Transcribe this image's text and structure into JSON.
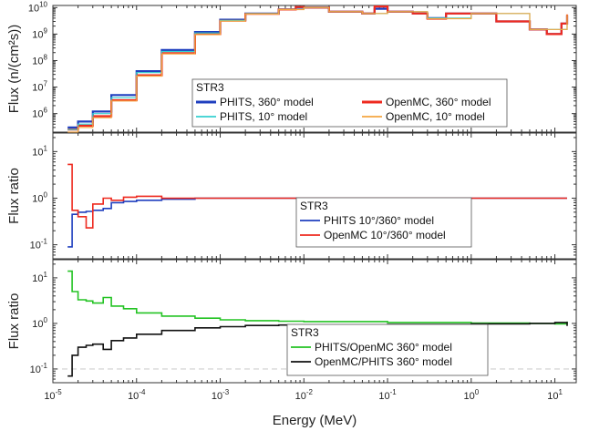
{
  "chart_data": [
    {
      "type": "line",
      "panel": "top",
      "ylabel": "Flux (n/(cm²s))",
      "yscale": "log",
      "xscale": "log",
      "xlim": [
        1e-05,
        18
      ],
      "ylim": [
        200000,
        12000000000
      ],
      "yticks": [
        {
          "v": 1000000.0,
          "m": "10",
          "e": "6"
        },
        {
          "v": 10000000.0,
          "m": "10",
          "e": "7"
        },
        {
          "v": 100000000.0,
          "m": "10",
          "e": "8"
        },
        {
          "v": 1000000000.0,
          "m": "10",
          "e": "9"
        },
        {
          "v": 10000000000.0,
          "m": "10",
          "e": "10"
        }
      ],
      "legend": {
        "title": "STR3",
        "placement": "bottom-center",
        "entries": [
          {
            "label": "PHITS,  360° model",
            "color": "#1f3fbf"
          },
          {
            "label": "OpenMC, 360° model",
            "color": "#ee2a1f"
          },
          {
            "label": "PHITS,      10° model",
            "color": "#34d1d1"
          },
          {
            "label": "OpenMC,   10° model",
            "color": "#f4a640"
          }
        ]
      },
      "series": [
        {
          "name": "PHITS,  360° model",
          "color": "#1f3fbf",
          "width": 2.2,
          "x": [
            1.5e-05,
            2e-05,
            3e-05,
            5e-05,
            0.0001,
            0.0002,
            0.0005,
            0.001,
            0.002,
            0.005,
            0.008,
            0.01,
            0.02,
            0.05,
            0.07,
            0.1,
            0.2,
            0.3,
            0.5,
            1,
            2,
            5,
            8,
            12,
            14
          ],
          "y": [
            300000,
            500000,
            1200000,
            5000000,
            40000000,
            250000000,
            1200000000,
            3500000000,
            6000000000,
            8500000000,
            10000000000,
            10000000000,
            7000000000,
            6000000000,
            9000000000,
            7000000000,
            6000000000,
            4000000000,
            6000000000,
            6000000000,
            3000000000,
            1500000000,
            1000000000,
            2500000000,
            5000000000
          ]
        },
        {
          "name": "OpenMC, 360° model",
          "color": "#ee2a1f",
          "width": 2.2,
          "x": [
            1.5e-05,
            2e-05,
            3e-05,
            5e-05,
            0.0001,
            0.0002,
            0.0005,
            0.001,
            0.002,
            0.005,
            0.008,
            0.01,
            0.02,
            0.05,
            0.07,
            0.1,
            0.2,
            0.3,
            0.5,
            1,
            2,
            5,
            8,
            12,
            14
          ],
          "y": [
            250000,
            350000,
            800000,
            3200000,
            28000000,
            190000000,
            1000000000,
            3200000000,
            5800000000,
            8500000000,
            10500000000,
            10000000000,
            7000000000,
            6000000000,
            11000000000,
            7000000000,
            6000000000,
            3800000000,
            6000000000,
            6000000000,
            3000000000,
            1500000000,
            1000000000,
            2500000000,
            5500000000
          ]
        },
        {
          "name": "PHITS,      10° model",
          "color": "#34d1d1",
          "width": 1.2,
          "x": [
            1.5e-05,
            2e-05,
            3e-05,
            5e-05,
            0.0001,
            0.0002,
            0.0005,
            0.001,
            0.002,
            0.005,
            0.01,
            0.02,
            0.05,
            0.1,
            0.3,
            1,
            5,
            14
          ],
          "y": [
            250000,
            400000,
            1000000,
            4000000,
            35000000,
            220000000,
            1100000000,
            3300000000,
            5900000000,
            8500000000,
            10000000000,
            7000000000,
            6000000000,
            7000000000,
            4000000000,
            6000000000,
            1500000000,
            5000000000
          ]
        },
        {
          "name": "OpenMC,   10° model",
          "color": "#f4a640",
          "width": 1.2,
          "x": [
            1.5e-05,
            2e-05,
            3e-05,
            5e-05,
            0.0001,
            0.0002,
            0.0005,
            0.001,
            0.002,
            0.005,
            0.01,
            0.02,
            0.05,
            0.1,
            0.3,
            1,
            5,
            14
          ],
          "y": [
            200000,
            300000,
            700000,
            3000000,
            26000000,
            180000000,
            950000000,
            3100000000,
            5700000000,
            8400000000,
            10000000000,
            7000000000,
            6000000000,
            7000000000,
            3800000000,
            6000000000,
            1500000000,
            5500000000
          ]
        }
      ]
    },
    {
      "type": "line",
      "panel": "middle",
      "ylabel": "Flux ratio",
      "yscale": "log",
      "xscale": "log",
      "xlim": [
        1e-05,
        18
      ],
      "ylim": [
        0.05,
        25
      ],
      "yticks": [
        {
          "v": 0.1,
          "m": "10",
          "e": "-1"
        },
        {
          "v": 1,
          "m": "10",
          "e": "0"
        },
        {
          "v": 10,
          "m": "10",
          "e": "1"
        }
      ],
      "legend": {
        "title": "STR3",
        "placement": "center-right",
        "entries": [
          {
            "label": "PHITS 10°/360° model",
            "color": "#1f3fbf"
          },
          {
            "label": "OpenMC 10°/360° model",
            "color": "#ee2a1f"
          }
        ]
      },
      "series": [
        {
          "name": "PHITS 10°/360° model",
          "color": "#1f3fbf",
          "width": 1.6,
          "x": [
            1.5e-05,
            1.7e-05,
            2e-05,
            2.5e-05,
            3e-05,
            4e-05,
            5e-05,
            7e-05,
            0.0001,
            0.0002,
            0.0005,
            0.001,
            0.01,
            0.1,
            1,
            14
          ],
          "y": [
            0.09,
            0.45,
            0.5,
            0.52,
            0.55,
            0.6,
            0.8,
            0.85,
            0.9,
            0.95,
            1.0,
            1.0,
            1.0,
            1.0,
            1.0,
            1.0
          ]
        },
        {
          "name": "OpenMC 10°/360° model",
          "color": "#ee2a1f",
          "width": 1.6,
          "x": [
            1.5e-05,
            1.7e-05,
            2e-05,
            2.5e-05,
            3e-05,
            4e-05,
            5e-05,
            7e-05,
            0.0001,
            0.0002,
            0.0005,
            0.001,
            0.01,
            0.1,
            1,
            14
          ],
          "y": [
            5.3,
            0.55,
            0.4,
            0.23,
            0.75,
            1.0,
            0.9,
            1.05,
            1.1,
            1.0,
            1.0,
            1.0,
            1.0,
            1.0,
            1.0,
            1.0
          ]
        }
      ]
    },
    {
      "type": "line",
      "panel": "bottom",
      "xlabel": "Energy (MeV)",
      "ylabel": "Flux ratio",
      "yscale": "log",
      "xscale": "log",
      "xlim": [
        1e-05,
        18
      ],
      "ylim": [
        0.05,
        25
      ],
      "reference_line": {
        "y": 0.1,
        "style": "dashed",
        "color": "#cfcfcf"
      },
      "xticks": [
        {
          "v": 1e-05,
          "m": "10",
          "e": "-5"
        },
        {
          "v": 0.0001,
          "m": "10",
          "e": "-4"
        },
        {
          "v": 0.001,
          "m": "10",
          "e": "-3"
        },
        {
          "v": 0.01,
          "m": "10",
          "e": "-2"
        },
        {
          "v": 0.1,
          "m": "10",
          "e": "-1"
        },
        {
          "v": 1,
          "m": "10",
          "e": "0"
        },
        {
          "v": 10,
          "m": "10",
          "e": "1"
        }
      ],
      "yticks": [
        {
          "v": 0.1,
          "m": "10",
          "e": "-1"
        },
        {
          "v": 1,
          "m": "10",
          "e": "0"
        },
        {
          "v": 10,
          "m": "10",
          "e": "1"
        }
      ],
      "legend": {
        "title": "STR3",
        "placement": "bottom-center",
        "entries": [
          {
            "label": "PHITS/OpenMC     360° model",
            "color": "#23c323"
          },
          {
            "label": "OpenMC/PHITS    360° model",
            "color": "#111111"
          }
        ]
      },
      "series": [
        {
          "name": "PHITS/OpenMC     360° model",
          "color": "#23c323",
          "width": 1.6,
          "x": [
            1.5e-05,
            1.7e-05,
            2e-05,
            2.5e-05,
            3e-05,
            4e-05,
            5e-05,
            7e-05,
            0.0001,
            0.0002,
            0.0005,
            0.001,
            0.002,
            0.005,
            0.01,
            0.1,
            1,
            5,
            10,
            14
          ],
          "y": [
            14,
            5,
            3.3,
            3.1,
            2.8,
            3.7,
            2.4,
            2.1,
            1.7,
            1.45,
            1.3,
            1.2,
            1.15,
            1.12,
            1.1,
            1.05,
            1.02,
            1.0,
            0.98,
            1.1
          ]
        },
        {
          "name": "OpenMC/PHITS    360° model",
          "color": "#111111",
          "width": 1.6,
          "x": [
            1.5e-05,
            1.7e-05,
            2e-05,
            2.5e-05,
            3e-05,
            4e-05,
            5e-05,
            7e-05,
            0.0001,
            0.0002,
            0.0005,
            0.001,
            0.002,
            0.005,
            0.01,
            0.1,
            1,
            5,
            10,
            14
          ],
          "y": [
            0.07,
            0.2,
            0.3,
            0.33,
            0.35,
            0.27,
            0.42,
            0.48,
            0.58,
            0.7,
            0.8,
            0.85,
            0.9,
            0.92,
            0.92,
            0.95,
            0.98,
            1.0,
            1.05,
            0.88
          ]
        }
      ]
    }
  ]
}
